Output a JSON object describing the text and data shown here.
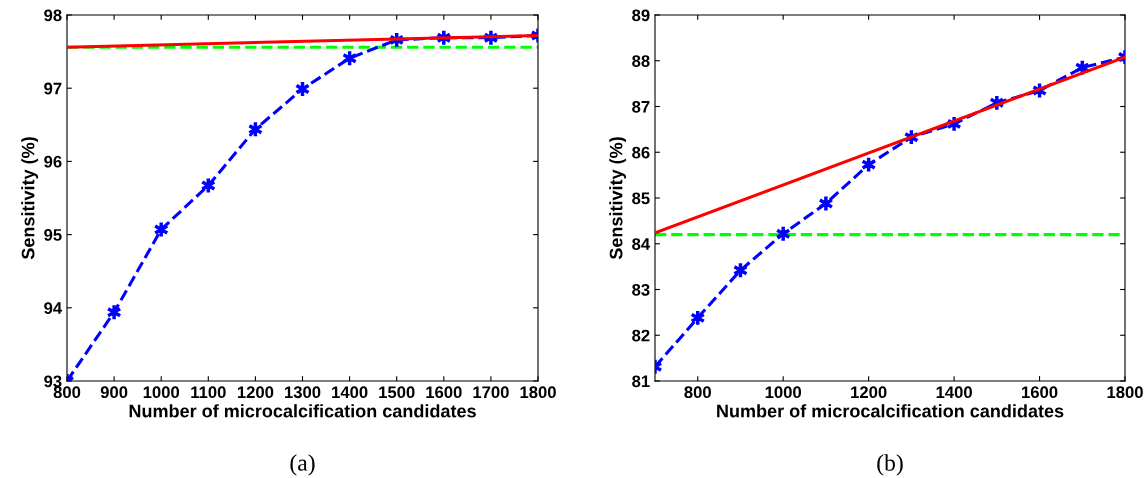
{
  "chart_data": [
    {
      "type": "line",
      "xlabel": "Number of microcalcification candidates",
      "ylabel": "Sensitivity (%)",
      "annotations": [
        "(a)"
      ],
      "x": [
        800,
        900,
        1000,
        1100,
        1200,
        1300,
        1400,
        1500,
        1600,
        1700,
        1800
      ],
      "series": [
        {
          "color": "#0000ff",
          "marker": "cross",
          "line_style": "dashed",
          "values": [
            93.0,
            93.94,
            95.07,
            95.67,
            96.44,
            96.99,
            97.41,
            97.66,
            97.69,
            97.69,
            97.72
          ]
        },
        {
          "color": "#ff0000",
          "marker": "none",
          "line_style": "solid",
          "x": [
            800,
            1800
          ],
          "values": [
            97.56,
            97.72
          ]
        }
      ],
      "ref_lines": [
        {
          "axis": "y",
          "value": 97.56,
          "color": "#00ff00",
          "line_style": "dashed"
        }
      ],
      "xlim": [
        800,
        1800
      ],
      "xticks": [
        800,
        900,
        1000,
        1100,
        1200,
        1300,
        1400,
        1500,
        1600,
        1700,
        1800
      ],
      "ylim": [
        93,
        98
      ],
      "yticks": [
        93,
        94,
        95,
        96,
        97,
        98
      ],
      "grid": false,
      "legend": false
    },
    {
      "type": "line",
      "xlabel": "Number of microcalcification candidates",
      "ylabel": "Sensitivity (%)",
      "annotations": [
        "(b)"
      ],
      "x": [
        700,
        800,
        900,
        1000,
        1100,
        1200,
        1300,
        1400,
        1500,
        1600,
        1700,
        1800
      ],
      "series": [
        {
          "color": "#0000ff",
          "marker": "cross",
          "line_style": "dashed",
          "values": [
            81.31,
            82.38,
            83.42,
            84.22,
            84.88,
            85.73,
            86.33,
            86.62,
            87.08,
            87.35,
            87.85,
            88.08
          ]
        },
        {
          "color": "#ff0000",
          "marker": "none",
          "line_style": "solid",
          "x": [
            700,
            1800
          ],
          "values": [
            84.24,
            88.08
          ]
        }
      ],
      "ref_lines": [
        {
          "axis": "y",
          "value": 84.2,
          "color": "#00ff00",
          "line_style": "dashed"
        }
      ],
      "xlim": [
        700,
        1800
      ],
      "xticks": [
        800,
        1000,
        1200,
        1400,
        1600,
        1800
      ],
      "ylim": [
        81,
        89
      ],
      "yticks": [
        81,
        82,
        83,
        84,
        85,
        86,
        87,
        88,
        89
      ],
      "grid": false,
      "legend": false
    }
  ]
}
